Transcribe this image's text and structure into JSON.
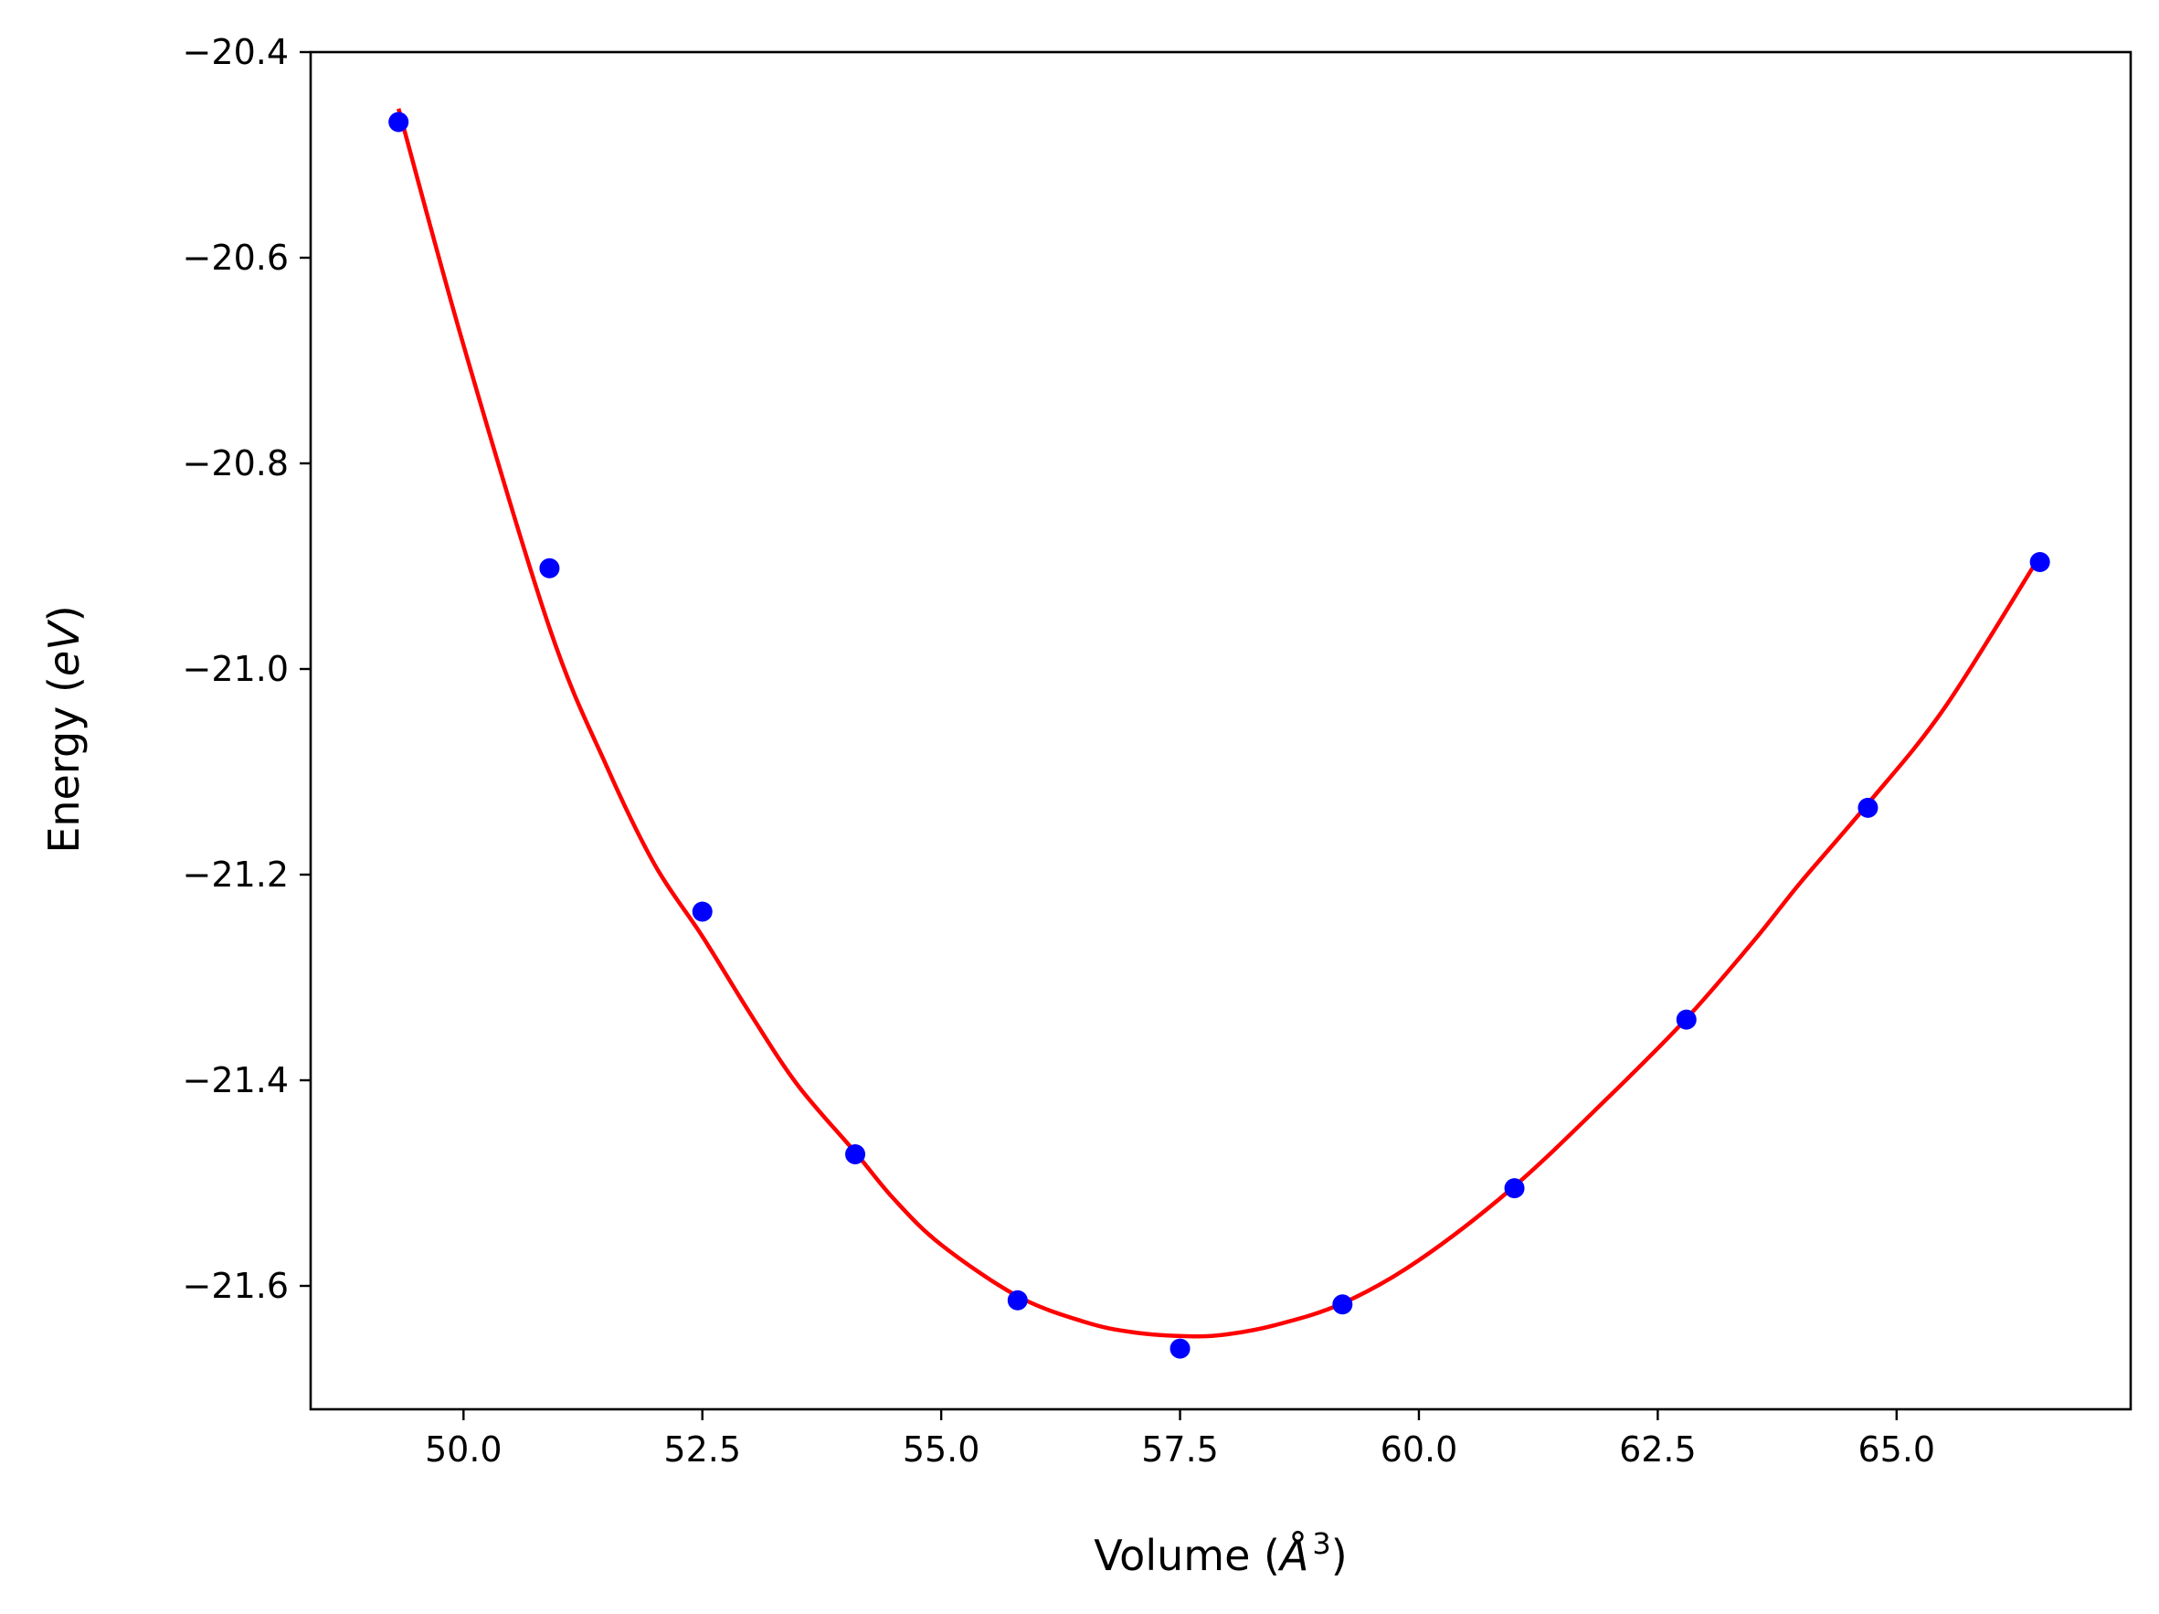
{
  "chart_data": {
    "type": "scatter",
    "xlabel": {
      "prefix": "Volume (",
      "italic": "Å",
      "sup": "3",
      "suffix": ")"
    },
    "ylabel": {
      "prefix": "Energy (",
      "italic": "eV",
      "suffix": ")"
    },
    "xlim": [
      48.4,
      67.45
    ],
    "ylim": [
      -21.72,
      -20.4
    ],
    "x_ticks": [
      50.0,
      52.5,
      55.0,
      57.5,
      60.0,
      62.5,
      65.0
    ],
    "x_tick_labels": [
      "50.0",
      "52.5",
      "55.0",
      "57.5",
      "60.0",
      "62.5",
      "65.0"
    ],
    "y_ticks": [
      -20.4,
      -20.6,
      -20.8,
      -21.0,
      -21.2,
      -21.4,
      -21.6
    ],
    "y_tick_labels": [
      "−20.4",
      "−20.6",
      "−20.8",
      "−21.0",
      "−21.2",
      "−21.4",
      "−21.6"
    ],
    "grid": false,
    "series": [
      {
        "kind": "points",
        "color": "#0000ff",
        "x": [
          49.32,
          50.9,
          52.5,
          54.1,
          55.8,
          57.5,
          59.2,
          61.0,
          62.8,
          64.7,
          66.5
        ],
        "y": [
          -20.468,
          -20.902,
          -21.236,
          -21.472,
          -21.614,
          -21.661,
          -21.618,
          -21.505,
          -21.341,
          -21.135,
          -20.896
        ]
      },
      {
        "kind": "fit-curve",
        "color": "#ff0000",
        "x": [
          49.32,
          50.0,
          50.9,
          51.5,
          52.0,
          52.5,
          53.0,
          53.5,
          54.1,
          54.5,
          55.0,
          55.8,
          56.5,
          57.0,
          57.6,
          58.0,
          58.5,
          59.2,
          60.0,
          61.0,
          62.0,
          62.8,
          63.5,
          64.0,
          64.7,
          65.5,
          66.5
        ],
        "y": [
          -20.455,
          -20.685,
          -20.96,
          -21.095,
          -21.19,
          -21.26,
          -21.335,
          -21.405,
          -21.47,
          -21.515,
          -21.56,
          -21.61,
          -21.635,
          -21.645,
          -21.649,
          -21.647,
          -21.638,
          -21.617,
          -21.575,
          -21.503,
          -21.415,
          -21.34,
          -21.265,
          -21.207,
          -21.131,
          -21.038,
          -20.89
        ]
      }
    ]
  }
}
